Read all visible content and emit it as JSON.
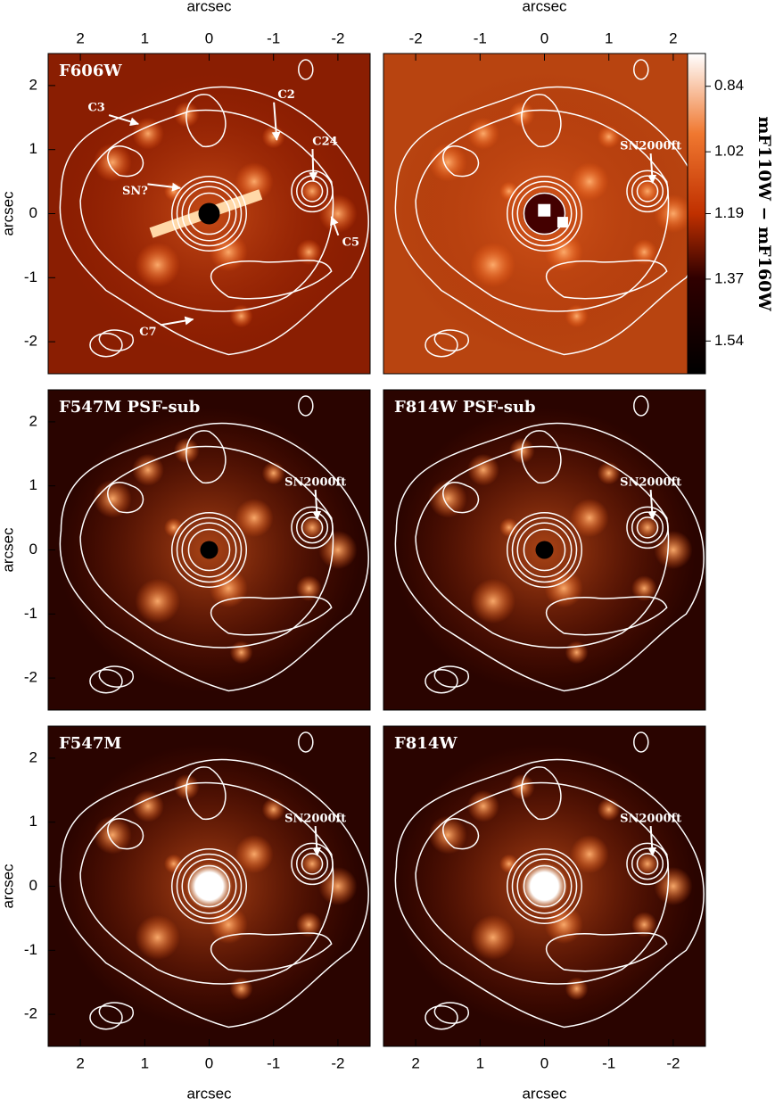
{
  "chart_data": [
    {
      "type": "image",
      "title": "F606W",
      "xlabel": "arcsec",
      "xlim": [
        2.5,
        -2.5
      ],
      "xticks": [
        2,
        1,
        0,
        -1,
        -2
      ],
      "ylabel": "arcsec",
      "ylim": [
        -2.5,
        2.5
      ],
      "yticks": [
        -2,
        -1,
        0,
        1,
        2
      ],
      "annotations": [
        "C3",
        "C2",
        "C24",
        "SN?",
        "C5",
        "C7"
      ]
    },
    {
      "type": "image",
      "title": "",
      "xlabel": "arcsec",
      "xlim": [
        -2.5,
        2.5
      ],
      "xticks": [
        -2,
        -1,
        0,
        1,
        2
      ],
      "ylim": [
        -2.5,
        2.5
      ],
      "annotations": [
        "SN2000ft"
      ],
      "colorbar": {
        "label": "mF110W − mF160W",
        "lim": [
          0.75,
          1.63
        ],
        "ticks": [
          0.84,
          1.02,
          1.19,
          1.37,
          1.54
        ]
      }
    },
    {
      "type": "image",
      "title": "F547M PSF-sub",
      "xlim": [
        2.5,
        -2.5
      ],
      "ylabel": "arcsec",
      "ylim": [
        -2.5,
        2.5
      ],
      "yticks": [
        -2,
        -1,
        0,
        1,
        2
      ],
      "annotations": [
        "SN2000ft"
      ]
    },
    {
      "type": "image",
      "title": "F814W PSF-sub",
      "xlim": [
        2.5,
        -2.5
      ],
      "ylim": [
        -2.5,
        2.5
      ],
      "annotations": [
        "SN2000ft"
      ]
    },
    {
      "type": "image",
      "title": "F547M",
      "xlabel": "arcsec",
      "xlim": [
        2.5,
        -2.5
      ],
      "xticks": [
        2,
        1,
        0,
        -1,
        -2
      ],
      "ylabel": "arcsec",
      "ylim": [
        -2.5,
        2.5
      ],
      "yticks": [
        -2,
        -1,
        0,
        1,
        2
      ],
      "annotations": [
        "SN2000ft"
      ]
    },
    {
      "type": "image",
      "title": "F814W",
      "xlabel": "arcsec",
      "xlim": [
        2.5,
        -2.5
      ],
      "xticks": [
        2,
        1,
        0,
        -1,
        -2
      ],
      "ylim": [
        -2.5,
        2.5
      ],
      "annotations": [
        "SN2000ft"
      ]
    }
  ]
}
